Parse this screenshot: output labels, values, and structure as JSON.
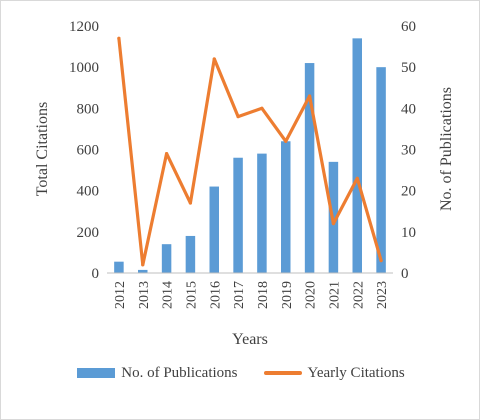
{
  "chart_data": {
    "type": "bar+line",
    "title": "",
    "xlabel": "Years",
    "ylabel_left": "Total Citations",
    "ylabel_right": "No. of Publications",
    "categories": [
      "2012",
      "2013",
      "2014",
      "2015",
      "2016",
      "2017",
      "2018",
      "2019",
      "2020",
      "2021",
      "2022",
      "2023"
    ],
    "ylim_left": [
      0,
      1200
    ],
    "ylim_right": [
      0,
      60
    ],
    "yticks_left": [
      "0",
      "200",
      "400",
      "600",
      "800",
      "1000",
      "1200"
    ],
    "yticks_right": [
      "0",
      "10",
      "20",
      "30",
      "40",
      "50",
      "60"
    ],
    "grid": false,
    "legend_position": "bottom",
    "series": [
      {
        "name": "No. of Publications",
        "kind": "bar",
        "axis": "left",
        "color": "#5b9bd5",
        "values": [
          55,
          15,
          140,
          180,
          420,
          560,
          580,
          640,
          1020,
          540,
          1140,
          1000
        ]
      },
      {
        "name": "Yearly Citations",
        "kind": "line",
        "axis": "right",
        "color": "#ed7d31",
        "values": [
          57,
          2,
          29,
          17,
          52,
          38,
          40,
          32,
          43,
          12,
          23,
          3
        ]
      }
    ]
  }
}
